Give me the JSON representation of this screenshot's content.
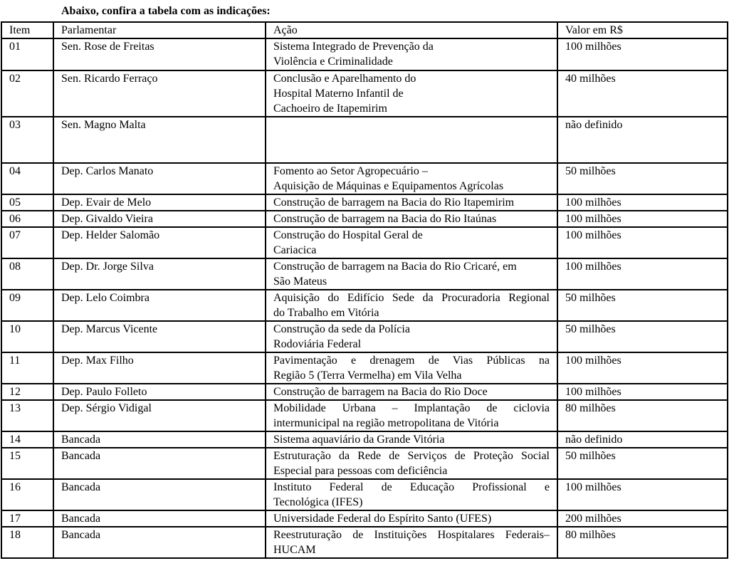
{
  "intro": "Abaixo, confira a tabela com as indicações:",
  "headers": [
    "Item",
    "Parlamentar",
    "Ação",
    "Valor em R$"
  ],
  "rows": [
    {
      "item": "01",
      "parlamentar": "Sen. Rose de Freitas",
      "acao": [
        "Sistema Integrado de Prevenção da",
        "Violência e Criminalidade"
      ],
      "valor": "100 milhões"
    },
    {
      "item": "02",
      "parlamentar": "Sen. Ricardo Ferraço",
      "acao": [
        "Conclusão e Aparelhamento do",
        "Hospital Materno Infantil de",
        "Cachoeiro de Itapemirim"
      ],
      "valor": "40 milhões"
    },
    {
      "item": "03",
      "parlamentar": "Sen. Magno Malta",
      "acao": [],
      "valor": "não definido"
    },
    {
      "item": "04",
      "parlamentar": "Dep. Carlos Manato",
      "acao": [
        "Fomento ao Setor Agropecuário –",
        "Aquisição de Máquinas e Equipamentos Agrícolas"
      ],
      "valor": "50 milhões"
    },
    {
      "item": "05",
      "parlamentar": "Dep. Evair de Melo",
      "acao": [
        "Construção de barragem na Bacia do Rio Itapemirim"
      ],
      "valor": "100 milhões"
    },
    {
      "item": "06",
      "parlamentar": "Dep. Givaldo Vieira",
      "acao": [
        "Construção de barragem na Bacia do Rio Itaúnas"
      ],
      "valor": "100 milhões"
    },
    {
      "item": "07",
      "parlamentar": "Dep. Helder Salomão",
      "acao": [
        "Construção do Hospital Geral de",
        "Cariacica"
      ],
      "valor": "100 milhões"
    },
    {
      "item": "08",
      "parlamentar": "Dep. Dr. Jorge Silva",
      "acao": [
        "Construção de barragem na Bacia do Rio Cricaré, em",
        "São Mateus"
      ],
      "valor": "100 milhões"
    },
    {
      "item": "09",
      "parlamentar": "Dep. Lelo Coimbra",
      "acao": [
        "Aquisição do Edifício Sede da Procuradoria Regional",
        "do Trabalho em Vitória"
      ],
      "valor": "50 milhões"
    },
    {
      "item": "10",
      "parlamentar": "Dep. Marcus Vicente",
      "acao": [
        "Construção da sede da Polícia",
        "Rodoviária Federal"
      ],
      "valor": "50 milhões"
    },
    {
      "item": "11",
      "parlamentar": "Dep. Max Filho",
      "acao": [
        "Pavimentação e drenagem de Vias Públicas na",
        "Região 5 (Terra Vermelha) em Vila Velha"
      ],
      "valor": "100 milhões"
    },
    {
      "item": "12",
      "parlamentar": "Dep. Paulo Folleto",
      "acao": [
        "Construção de barragem na Bacia do  Rio Doce"
      ],
      "valor": "100 milhões"
    },
    {
      "item": "13",
      "parlamentar": "Dep. Sérgio Vidigal",
      "acao": [
        "Mobilidade Urbana – Implantação de ciclovia",
        "intermunicipal na região metropolitana de Vitória"
      ],
      "valor": "80 milhões"
    },
    {
      "item": "14",
      "parlamentar": "Bancada",
      "acao": [
        "Sistema aquaviário da Grande Vitória"
      ],
      "valor": "não definido"
    },
    {
      "item": "15",
      "parlamentar": "Bancada",
      "acao": [
        "Estruturação da Rede de Serviços de Proteção Social",
        "Especial para pessoas com deficiência"
      ],
      "valor": "50 milhões"
    },
    {
      "item": "16",
      "parlamentar": "Bancada",
      "acao": [
        "Instituto Federal de Educação Profissional e",
        "Tecnológica (IFES)"
      ],
      "valor": "100 milhões"
    },
    {
      "item": "17",
      "parlamentar": "Bancada",
      "acao": [
        "Universidade Federal do Espírito Santo (UFES)"
      ],
      "valor": "200 milhões"
    },
    {
      "item": "18",
      "parlamentar": "Bancada",
      "acao": [
        "Reestruturação de Instituições Hospitalares Federais–",
        "HUCAM"
      ],
      "valor": "80 milhões"
    }
  ]
}
